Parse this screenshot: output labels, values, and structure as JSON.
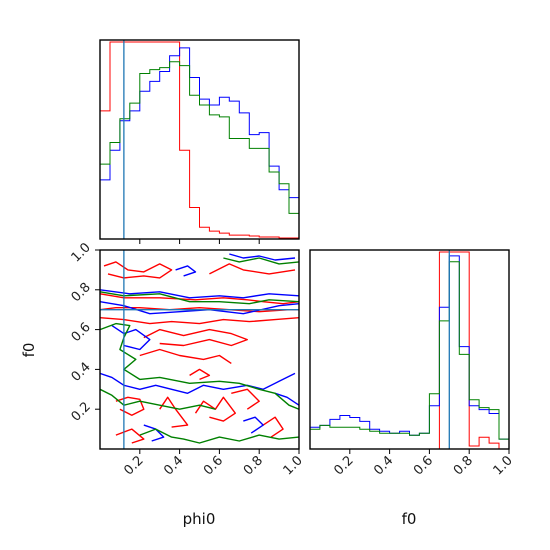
{
  "chart_data": {
    "type": "corner",
    "xlabel": "phi0",
    "ylabel": "f0",
    "xlabel_right": "f0",
    "colors": [
      "#ff0000",
      "#0000ff",
      "#008000"
    ],
    "truth": {
      "phi0": 0.12,
      "f0": 0.7,
      "color": "#1f77b4"
    },
    "axes": {
      "phi0_range": [
        0.0,
        1.0
      ],
      "f0_range": [
        0.0,
        1.0
      ],
      "phi0_ticks": [
        "0.2",
        "0.4",
        "0.6",
        "0.8",
        "1.0"
      ],
      "f0_ticks": [
        "0.2",
        "0.4",
        "0.6",
        "0.8",
        "1.0"
      ]
    },
    "hist_phi0": {
      "edges": [
        0.0,
        0.05,
        0.1,
        0.15,
        0.2,
        0.25,
        0.3,
        0.35,
        0.4,
        0.45,
        0.5,
        0.55,
        0.6,
        0.65,
        0.7,
        0.75,
        0.8,
        0.85,
        0.9,
        0.95,
        1.0
      ],
      "series": [
        {
          "color": "#ff0000",
          "values": [
            0.65,
            1.0,
            1.0,
            1.0,
            1.0,
            1.0,
            1.0,
            1.0,
            0.45,
            0.16,
            0.06,
            0.04,
            0.03,
            0.02,
            0.02,
            0.015,
            0.01,
            0.01,
            0.005,
            0.005
          ]
        },
        {
          "color": "#0000ff",
          "values": [
            0.3,
            0.45,
            0.6,
            0.65,
            0.75,
            0.8,
            0.85,
            0.93,
            0.97,
            0.82,
            0.71,
            0.68,
            0.72,
            0.7,
            0.64,
            0.53,
            0.54,
            0.37,
            0.25,
            0.21
          ]
        },
        {
          "color": "#008000",
          "values": [
            0.38,
            0.49,
            0.61,
            0.69,
            0.84,
            0.86,
            0.87,
            0.9,
            0.88,
            0.73,
            0.68,
            0.63,
            0.62,
            0.51,
            0.51,
            0.46,
            0.46,
            0.34,
            0.28,
            0.13
          ]
        }
      ]
    },
    "hist_f0": {
      "edges": [
        0.0,
        0.05,
        0.1,
        0.15,
        0.2,
        0.25,
        0.3,
        0.35,
        0.4,
        0.45,
        0.5,
        0.55,
        0.6,
        0.65,
        0.7,
        0.75,
        0.8,
        0.85,
        0.9,
        0.95,
        1.0
      ],
      "series": [
        {
          "color": "#ff0000",
          "values": [
            0.0,
            0.0,
            0.0,
            0.0,
            0.0,
            0.0,
            0.0,
            0.0,
            0.0,
            0.0,
            0.0,
            0.0,
            0.0,
            1.0,
            1.0,
            1.0,
            0.015,
            0.06,
            0.03,
            0.0
          ]
        },
        {
          "color": "#0000ff",
          "values": [
            0.11,
            0.12,
            0.15,
            0.17,
            0.16,
            0.14,
            0.1,
            0.09,
            0.08,
            0.09,
            0.07,
            0.08,
            0.22,
            0.72,
            0.98,
            0.52,
            0.22,
            0.2,
            0.18,
            0.05
          ]
        },
        {
          "color": "#008000",
          "values": [
            0.1,
            0.12,
            0.11,
            0.11,
            0.11,
            0.1,
            0.09,
            0.08,
            0.08,
            0.08,
            0.07,
            0.08,
            0.28,
            0.65,
            0.95,
            0.48,
            0.25,
            0.21,
            0.2,
            0.05
          ]
        }
      ]
    },
    "contours": [
      {
        "color": "#ff0000",
        "paths": [
          [
            [
              0.02,
              0.92
            ],
            [
              0.08,
              0.94
            ],
            [
              0.14,
              0.9
            ],
            [
              0.22,
              0.89
            ],
            [
              0.3,
              0.93
            ],
            [
              0.36,
              0.9
            ],
            [
              0.3,
              0.86
            ],
            [
              0.22,
              0.87
            ],
            [
              0.12,
              0.86
            ],
            [
              0.04,
              0.88
            ]
          ],
          [
            [
              0.55,
              0.88
            ],
            [
              0.65,
              0.93
            ],
            [
              0.72,
              0.9
            ],
            [
              0.85,
              0.88
            ],
            [
              0.98,
              0.9
            ]
          ],
          [
            [
              0.0,
              0.78
            ],
            [
              0.12,
              0.76
            ],
            [
              0.3,
              0.76
            ],
            [
              0.48,
              0.75
            ],
            [
              0.62,
              0.76
            ],
            [
              0.74,
              0.75
            ],
            [
              0.82,
              0.74
            ],
            [
              0.92,
              0.73
            ],
            [
              1.0,
              0.74
            ]
          ],
          [
            [
              0.0,
              0.7
            ],
            [
              0.08,
              0.71
            ],
            [
              0.2,
              0.71
            ],
            [
              0.35,
              0.7
            ],
            [
              0.5,
              0.71
            ],
            [
              0.65,
              0.7
            ],
            [
              0.8,
              0.69
            ],
            [
              0.95,
              0.7
            ],
            [
              1.0,
              0.7
            ]
          ],
          [
            [
              0.0,
              0.66
            ],
            [
              0.12,
              0.65
            ],
            [
              0.25,
              0.63
            ],
            [
              0.36,
              0.64
            ],
            [
              0.5,
              0.63
            ],
            [
              0.62,
              0.65
            ],
            [
              0.75,
              0.64
            ],
            [
              0.88,
              0.65
            ],
            [
              1.0,
              0.66
            ]
          ],
          [
            [
              0.22,
              0.56
            ],
            [
              0.3,
              0.6
            ],
            [
              0.42,
              0.57
            ],
            [
              0.55,
              0.6
            ],
            [
              0.66,
              0.58
            ],
            [
              0.74,
              0.55
            ],
            [
              0.66,
              0.52
            ],
            [
              0.55,
              0.55
            ],
            [
              0.42,
              0.52
            ],
            [
              0.3,
              0.53
            ]
          ],
          [
            [
              0.2,
              0.47
            ],
            [
              0.3,
              0.5
            ],
            [
              0.4,
              0.47
            ],
            [
              0.52,
              0.45
            ],
            [
              0.6,
              0.47
            ],
            [
              0.66,
              0.43
            ]
          ],
          [
            [
              0.45,
              0.37
            ],
            [
              0.5,
              0.4
            ],
            [
              0.55,
              0.37
            ],
            [
              0.5,
              0.35
            ]
          ],
          [
            [
              0.08,
              0.24
            ],
            [
              0.14,
              0.26
            ],
            [
              0.2,
              0.25
            ],
            [
              0.22,
              0.2
            ],
            [
              0.16,
              0.17
            ],
            [
              0.1,
              0.2
            ]
          ],
          [
            [
              0.3,
              0.2
            ],
            [
              0.34,
              0.26
            ],
            [
              0.38,
              0.2
            ],
            [
              0.44,
              0.12
            ],
            [
              0.36,
              0.11
            ]
          ],
          [
            [
              0.48,
              0.18
            ],
            [
              0.52,
              0.24
            ],
            [
              0.58,
              0.2
            ],
            [
              0.62,
              0.26
            ],
            [
              0.68,
              0.18
            ],
            [
              0.62,
              0.14
            ],
            [
              0.55,
              0.16
            ]
          ],
          [
            [
              0.66,
              0.28
            ],
            [
              0.74,
              0.3
            ],
            [
              0.8,
              0.24
            ],
            [
              0.74,
              0.2
            ]
          ],
          [
            [
              0.82,
              0.12
            ],
            [
              0.88,
              0.16
            ],
            [
              0.92,
              0.1
            ],
            [
              0.86,
              0.06
            ]
          ],
          [
            [
              0.08,
              0.07
            ],
            [
              0.16,
              0.1
            ],
            [
              0.22,
              0.05
            ],
            [
              0.16,
              0.03
            ]
          ]
        ]
      },
      {
        "color": "#0000ff",
        "paths": [
          [
            [
              0.38,
              0.9
            ],
            [
              0.44,
              0.92
            ],
            [
              0.48,
              0.89
            ],
            [
              0.42,
              0.87
            ]
          ],
          [
            [
              0.65,
              0.98
            ],
            [
              0.72,
              0.96
            ],
            [
              0.8,
              0.97
            ],
            [
              0.88,
              0.95
            ],
            [
              0.98,
              0.96
            ]
          ],
          [
            [
              0.0,
              0.8
            ],
            [
              0.15,
              0.78
            ],
            [
              0.3,
              0.79
            ],
            [
              0.45,
              0.76
            ],
            [
              0.6,
              0.77
            ],
            [
              0.72,
              0.76
            ],
            [
              0.85,
              0.78
            ],
            [
              1.0,
              0.77
            ]
          ],
          [
            [
              0.0,
              0.74
            ],
            [
              0.12,
              0.72
            ],
            [
              0.25,
              0.68
            ],
            [
              0.4,
              0.69
            ],
            [
              0.55,
              0.7
            ],
            [
              0.72,
              0.68
            ],
            [
              0.9,
              0.72
            ],
            [
              1.0,
              0.73
            ]
          ],
          [
            [
              0.06,
              0.62
            ],
            [
              0.12,
              0.58
            ],
            [
              0.18,
              0.6
            ],
            [
              0.25,
              0.55
            ],
            [
              0.2,
              0.5
            ],
            [
              0.12,
              0.52
            ]
          ],
          [
            [
              0.0,
              0.38
            ],
            [
              0.06,
              0.36
            ],
            [
              0.12,
              0.32
            ],
            [
              0.2,
              0.3
            ],
            [
              0.28,
              0.32
            ],
            [
              0.36,
              0.3
            ],
            [
              0.44,
              0.28
            ],
            [
              0.52,
              0.32
            ],
            [
              0.62,
              0.3
            ],
            [
              0.74,
              0.32
            ],
            [
              0.82,
              0.3
            ],
            [
              0.9,
              0.34
            ],
            [
              0.98,
              0.38
            ]
          ],
          [
            [
              0.22,
              0.12
            ],
            [
              0.28,
              0.1
            ],
            [
              0.32,
              0.06
            ],
            [
              0.26,
              0.04
            ]
          ],
          [
            [
              0.72,
              0.14
            ],
            [
              0.78,
              0.16
            ],
            [
              0.82,
              0.12
            ],
            [
              0.76,
              0.08
            ]
          ],
          [
            [
              0.88,
              0.28
            ],
            [
              0.94,
              0.26
            ],
            [
              1.0,
              0.22
            ]
          ]
        ]
      },
      {
        "color": "#008000",
        "paths": [
          [
            [
              0.62,
              0.96
            ],
            [
              0.7,
              0.94
            ],
            [
              0.8,
              0.96
            ],
            [
              0.9,
              0.93
            ],
            [
              1.0,
              0.94
            ]
          ],
          [
            [
              0.0,
              0.79
            ],
            [
              0.12,
              0.77
            ],
            [
              0.3,
              0.78
            ],
            [
              0.45,
              0.74
            ],
            [
              0.6,
              0.74
            ],
            [
              0.75,
              0.73
            ],
            [
              0.85,
              0.75
            ],
            [
              1.0,
              0.74
            ]
          ],
          [
            [
              0.0,
              0.6
            ],
            [
              0.08,
              0.63
            ],
            [
              0.15,
              0.62
            ],
            [
              0.12,
              0.56
            ],
            [
              0.1,
              0.5
            ],
            [
              0.18,
              0.45
            ],
            [
              0.12,
              0.4
            ],
            [
              0.2,
              0.35
            ],
            [
              0.3,
              0.36
            ],
            [
              0.45,
              0.33
            ],
            [
              0.6,
              0.34
            ],
            [
              0.7,
              0.33
            ],
            [
              0.8,
              0.3
            ],
            [
              0.88,
              0.28
            ],
            [
              0.95,
              0.22
            ],
            [
              1.0,
              0.2
            ]
          ],
          [
            [
              0.0,
              0.3
            ],
            [
              0.06,
              0.27
            ],
            [
              0.12,
              0.22
            ],
            [
              0.2,
              0.24
            ],
            [
              0.3,
              0.22
            ],
            [
              0.4,
              0.2
            ],
            [
              0.5,
              0.22
            ],
            [
              0.58,
              0.2
            ]
          ],
          [
            [
              0.2,
              0.07
            ],
            [
              0.28,
              0.1
            ],
            [
              0.36,
              0.06
            ],
            [
              0.42,
              0.05
            ],
            [
              0.5,
              0.03
            ],
            [
              0.6,
              0.06
            ],
            [
              0.7,
              0.04
            ],
            [
              0.8,
              0.07
            ],
            [
              0.9,
              0.05
            ],
            [
              1.0,
              0.06
            ]
          ]
        ]
      }
    ]
  }
}
